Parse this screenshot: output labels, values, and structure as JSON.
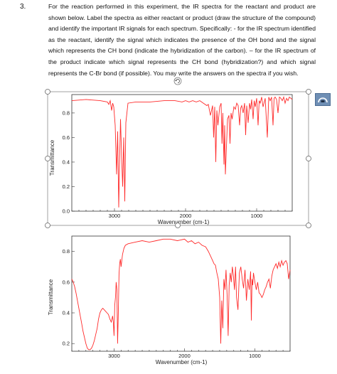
{
  "question": {
    "number": "3.",
    "text": "For the reaction performed in this experiment, the IR spectra for the reactant and product are shown below.  Label the spectra as either reactant or product (draw the structure of the compound) and identify the important IR signals for each spectrum.  Specifically: - for the IR spectrum identified as the reactant, identify the signal which indicates the presence of the OH bond and the signal which represents the CH bond (indicate the hybridization of the carbon). – for the IR spectrum of the product indicate which signal represents the CH bond (hybridization?) and which signal represents the C-Br bond (if possible). You may write the answers on the spectra if you wish."
  },
  "chart_data": [
    {
      "type": "line",
      "title": "",
      "xlabel": "Wavenumber (cm-1)",
      "ylabel": "Transmittance",
      "xlim": [
        3600,
        500
      ],
      "ylim": [
        0.0,
        0.95
      ],
      "xticks": [
        3000,
        2000,
        1000
      ],
      "yticks": [
        "0.0",
        "0.2",
        "0.4",
        "0.6",
        "0.8"
      ],
      "yticks_values": [
        0.0,
        0.2,
        0.4,
        0.6,
        0.8
      ],
      "grid": false,
      "series": [
        {
          "color": "#ff2a2a",
          "x": [
            3600,
            3400,
            3200,
            3100,
            3080,
            3060,
            3040,
            3025,
            3010,
            2990,
            2970,
            2955,
            2940,
            2928,
            2915,
            2900,
            2885,
            2870,
            2855,
            2840,
            2810,
            2700,
            2500,
            2300,
            2150,
            2050,
            2000,
            1950,
            1900,
            1850,
            1800,
            1750,
            1700,
            1680,
            1650,
            1620,
            1605,
            1590,
            1575,
            1560,
            1545,
            1520,
            1500,
            1488,
            1476,
            1460,
            1450,
            1440,
            1410,
            1390,
            1375,
            1360,
            1345,
            1320,
            1300,
            1280,
            1260,
            1240,
            1225,
            1210,
            1190,
            1170,
            1155,
            1140,
            1120,
            1100,
            1085,
            1070,
            1050,
            1035,
            1020,
            1000,
            980,
            965,
            950,
            930,
            910,
            880,
            850,
            830,
            810,
            790,
            770,
            755,
            740,
            720,
            700,
            680,
            660,
            640,
            620,
            600,
            580,
            560,
            540,
            520,
            500
          ],
          "y": [
            0.9,
            0.91,
            0.9,
            0.89,
            0.87,
            0.9,
            0.82,
            0.88,
            0.85,
            0.7,
            0.3,
            0.65,
            0.03,
            0.4,
            0.75,
            0.45,
            0.2,
            0.6,
            0.08,
            0.72,
            0.88,
            0.89,
            0.89,
            0.9,
            0.9,
            0.89,
            0.9,
            0.89,
            0.9,
            0.89,
            0.9,
            0.88,
            0.86,
            0.87,
            0.78,
            0.86,
            0.6,
            0.85,
            0.4,
            0.82,
            0.7,
            0.85,
            0.88,
            0.55,
            0.8,
            0.38,
            0.7,
            0.3,
            0.75,
            0.78,
            0.55,
            0.8,
            0.75,
            0.85,
            0.83,
            0.88,
            0.86,
            0.7,
            0.84,
            0.86,
            0.8,
            0.88,
            0.62,
            0.86,
            0.72,
            0.88,
            0.83,
            0.91,
            0.75,
            0.9,
            0.85,
            0.92,
            0.7,
            0.9,
            0.88,
            0.93,
            0.85,
            0.92,
            0.6,
            0.93,
            0.9,
            0.93,
            0.7,
            0.92,
            0.93,
            0.91,
            0.8,
            0.93,
            0.92,
            0.9,
            0.93,
            0.88,
            0.92,
            0.9,
            0.93,
            0.92,
            0.91
          ]
        }
      ]
    },
    {
      "type": "line",
      "title": "",
      "xlabel": "Wavenumber (cm-1)",
      "ylabel": "Transmittance",
      "xlim": [
        3600,
        500
      ],
      "ylim": [
        0.15,
        0.9
      ],
      "xticks": [
        3000,
        2000,
        1000
      ],
      "yticks": [
        "0.2",
        "0.4",
        "0.6",
        "0.8"
      ],
      "yticks_values": [
        0.2,
        0.4,
        0.6,
        0.8
      ],
      "grid": false,
      "series": [
        {
          "color": "#ff2a2a",
          "x": [
            3600,
            3580,
            3560,
            3540,
            3520,
            3500,
            3480,
            3460,
            3440,
            3420,
            3400,
            3380,
            3360,
            3340,
            3320,
            3300,
            3280,
            3260,
            3240,
            3220,
            3200,
            3180,
            3160,
            3140,
            3120,
            3100,
            3080,
            3060,
            3040,
            3020,
            3010,
            3000,
            2990,
            2980,
            2970,
            2960,
            2950,
            2940,
            2930,
            2920,
            2910,
            2900,
            2880,
            2860,
            2840,
            2800,
            2700,
            2600,
            2500,
            2400,
            2300,
            2200,
            2100,
            2000,
            1950,
            1900,
            1850,
            1800,
            1750,
            1700,
            1660,
            1640,
            1620,
            1600,
            1580,
            1560,
            1540,
            1520,
            1500,
            1485,
            1470,
            1455,
            1440,
            1425,
            1410,
            1395,
            1380,
            1365,
            1350,
            1335,
            1320,
            1305,
            1290,
            1275,
            1260,
            1240,
            1220,
            1200,
            1180,
            1160,
            1140,
            1120,
            1100,
            1080,
            1060,
            1050,
            1040,
            1030,
            1020,
            1000,
            980,
            960,
            940,
            920,
            900,
            880,
            860,
            840,
            820,
            800,
            780,
            760,
            740,
            720,
            700,
            680,
            660,
            640,
            620,
            600,
            580,
            560,
            540,
            520,
            500
          ],
          "y": [
            0.62,
            0.6,
            0.57,
            0.53,
            0.48,
            0.43,
            0.38,
            0.33,
            0.28,
            0.24,
            0.2,
            0.17,
            0.16,
            0.16,
            0.17,
            0.19,
            0.22,
            0.26,
            0.3,
            0.36,
            0.4,
            0.42,
            0.43,
            0.42,
            0.41,
            0.4,
            0.39,
            0.36,
            0.34,
            0.38,
            0.34,
            0.25,
            0.45,
            0.5,
            0.6,
            0.55,
            0.2,
            0.4,
            0.65,
            0.72,
            0.75,
            0.7,
            0.78,
            0.82,
            0.84,
            0.85,
            0.86,
            0.87,
            0.86,
            0.87,
            0.88,
            0.88,
            0.87,
            0.88,
            0.86,
            0.87,
            0.85,
            0.86,
            0.84,
            0.83,
            0.8,
            0.78,
            0.76,
            0.74,
            0.72,
            0.71,
            0.66,
            0.62,
            0.5,
            0.2,
            0.48,
            0.3,
            0.62,
            0.55,
            0.68,
            0.52,
            0.25,
            0.58,
            0.66,
            0.6,
            0.7,
            0.64,
            0.55,
            0.7,
            0.5,
            0.42,
            0.66,
            0.7,
            0.62,
            0.56,
            0.68,
            0.48,
            0.62,
            0.55,
            0.67,
            0.35,
            0.62,
            0.58,
            0.66,
            0.6,
            0.55,
            0.6,
            0.53,
            0.52,
            0.5,
            0.52,
            0.55,
            0.57,
            0.6,
            0.62,
            0.56,
            0.64,
            0.68,
            0.7,
            0.72,
            0.69,
            0.73,
            0.7,
            0.74,
            0.71,
            0.73,
            0.74,
            0.72,
            0.62,
            0.68
          ]
        }
      ]
    }
  ]
}
